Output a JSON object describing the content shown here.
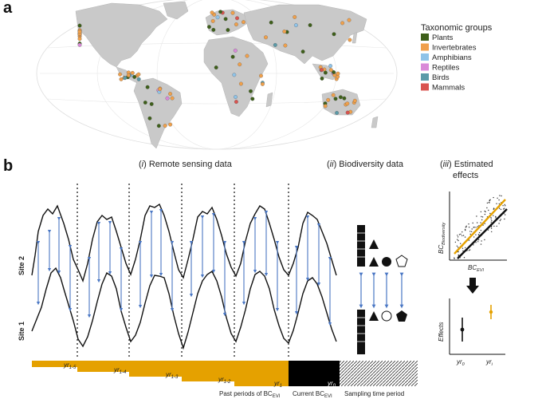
{
  "panel_a": {
    "letter": "a",
    "legend": {
      "title": "Taxonomic groups",
      "items": [
        {
          "label": "Plants",
          "color": "#3e5f1a"
        },
        {
          "label": "Invertebrates",
          "color": "#f0a04b"
        },
        {
          "label": "Amphibians",
          "color": "#8fc3e8"
        },
        {
          "label": "Reptiles",
          "color": "#d98ad8"
        },
        {
          "label": "Birds",
          "color": "#5b9aa8"
        },
        {
          "label": "Mammals",
          "color": "#d9534f"
        }
      ]
    }
  },
  "panel_b": {
    "letter": "b",
    "header_i_num": "i",
    "header_i_text": " Remote sensing data",
    "header_ii_num": "ii",
    "header_ii_text": " Biodiversity data",
    "header_iii_num": "iii",
    "header_iii_line1": " Estimated",
    "header_iii_line2": "effects",
    "site2": "Site 2",
    "site1": "Site 1",
    "timeline": {
      "labels": [
        "yr",
        "yr",
        "yr",
        "yr",
        "yr",
        "yr"
      ],
      "subs": [
        "1-5",
        "1-4",
        "1-3",
        "1-2",
        "1",
        "0"
      ],
      "past_label": "Past periods of BC",
      "past_sub": "EVI",
      "current_label": "Current BC",
      "current_sub": "EVI",
      "sampling_label": "Sampling time period"
    },
    "scatter": {
      "ylabel": "BC",
      "ylabel_sub": "Biodiversity",
      "xlabel": "BC",
      "xlabel_sub": "EVI"
    },
    "effects": {
      "ylabel": "Effects",
      "x0": "yr",
      "x0_sub": "0",
      "x1": "yr",
      "x1_sub": "i"
    }
  }
}
